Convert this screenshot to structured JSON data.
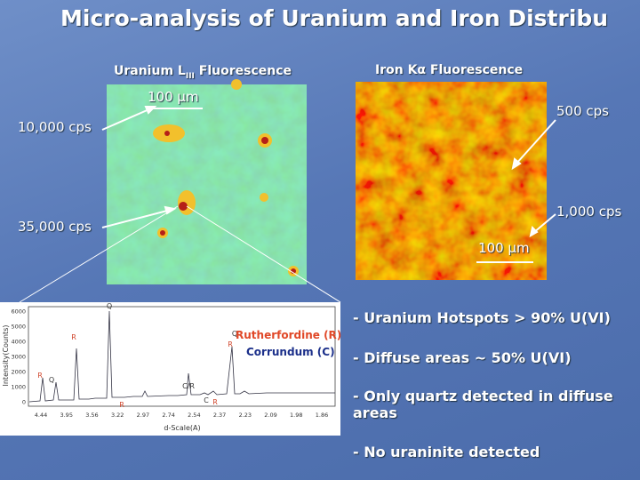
{
  "header": {
    "title": "Micro-analysis of Uranium and Iron Distribu"
  },
  "uranium_map": {
    "label_main": "Uranium L",
    "label_sub": "III",
    "label_rest": " Fluorescence",
    "scale": "100 µm",
    "low": "10,000 cps",
    "high": "35,000 cps"
  },
  "iron_map": {
    "label": "Iron Kα Fluorescence",
    "low": "500 cps",
    "high": "1,000 cps",
    "scale": "100 µm"
  },
  "xrd": {
    "y_axis_label": "Intensity(Counts)",
    "x_axis_label": "d-Scale(A)",
    "yticks": [
      "0",
      "1000",
      "2000",
      "3000",
      "4000",
      "5000",
      "6000"
    ],
    "xticks": [
      "4.44",
      "3.95",
      "3.56",
      "3.22",
      "2.97",
      "2.74",
      "2.54",
      "2.37",
      "2.23",
      "2.09",
      "1.98",
      "1.86"
    ],
    "peak_labels": [
      "R",
      "Q",
      "R",
      "Q",
      "R",
      "C/R",
      "C",
      "R",
      "R",
      "Q"
    ]
  },
  "legend": {
    "rutherfordine": "Rutherfordine (R)",
    "corrundum": "Corrundum (C)"
  },
  "bullets": [
    "- Uranium Hotspots > 90% U(VI)",
    "- Diffuse areas ~ 50% U(VI)",
    "- Only quartz detected in diffuse areas",
    "- No uraninite detected"
  ]
}
